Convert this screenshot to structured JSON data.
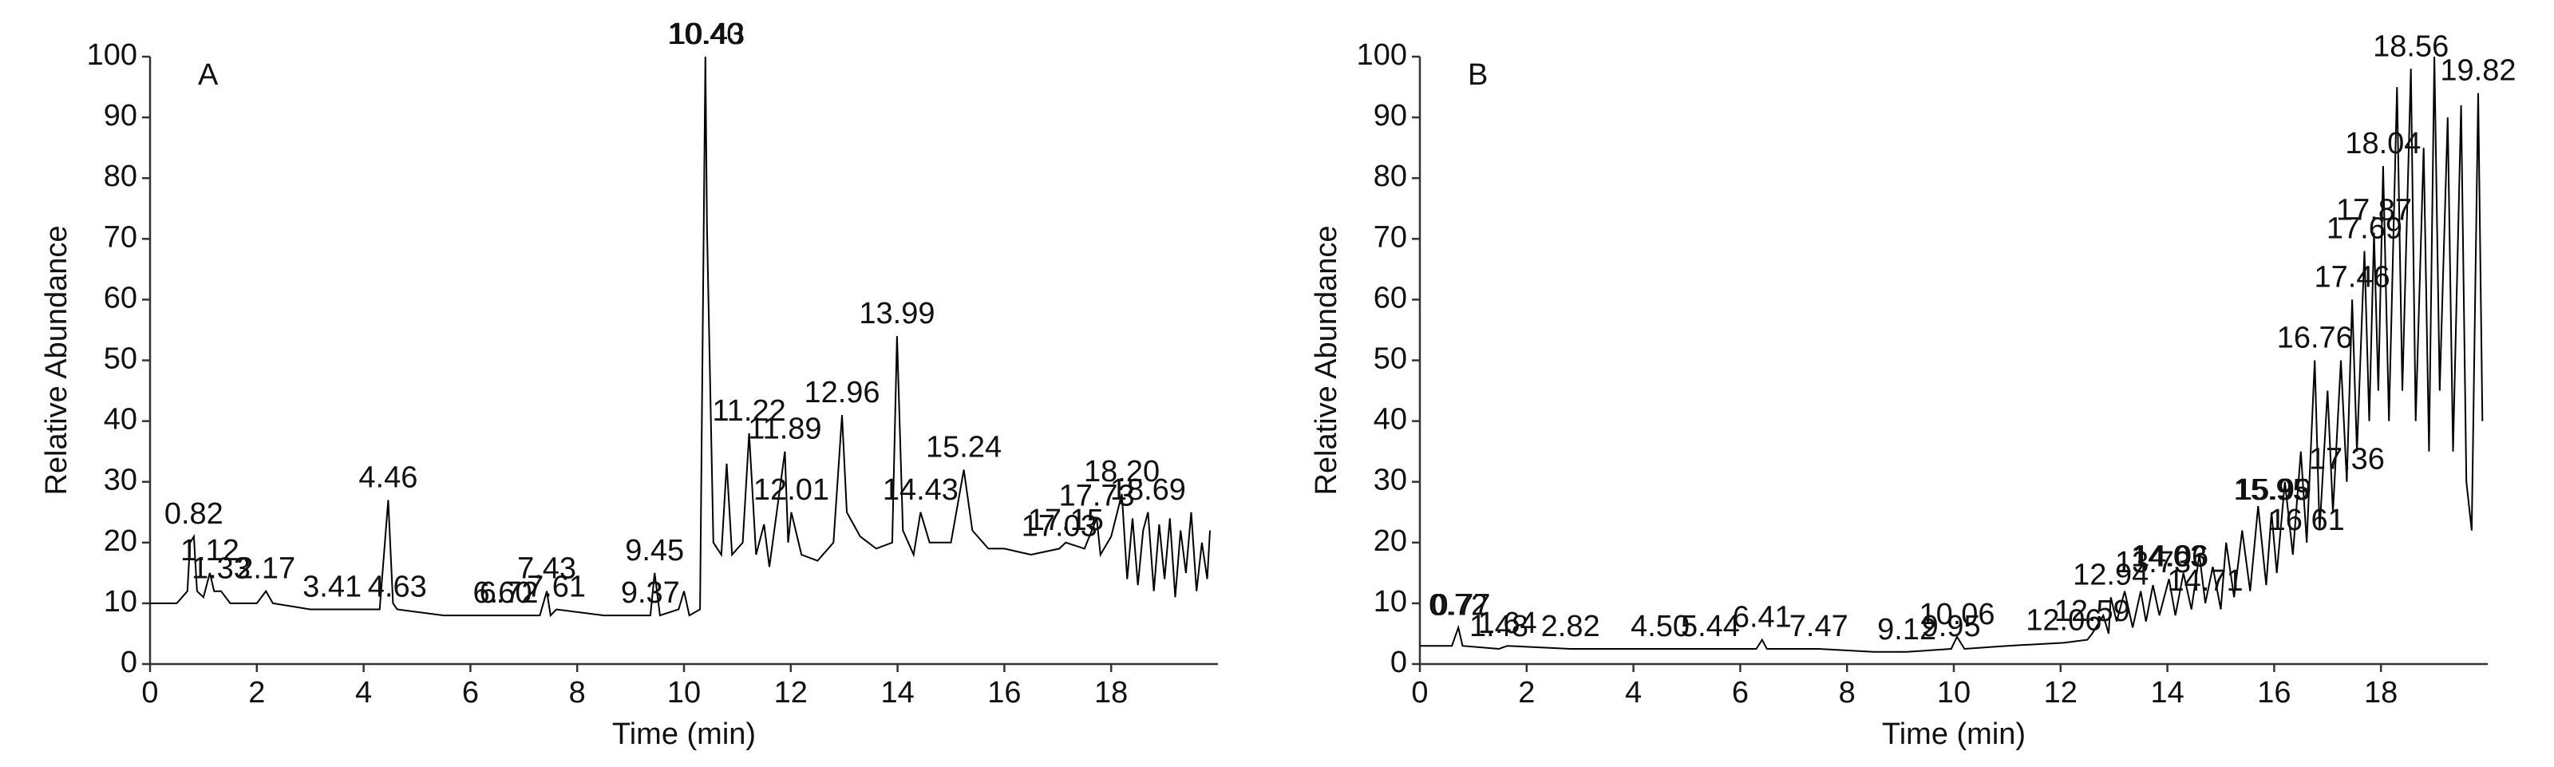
{
  "chart_data": [
    {
      "type": "line",
      "title": "A",
      "x_label": "Time (min)",
      "y_label": "Relative Abundance",
      "color": "#000000",
      "xlim": [
        0,
        20
      ],
      "ylim": [
        0,
        100
      ],
      "xticks": [
        0,
        2,
        4,
        6,
        8,
        10,
        12,
        14,
        16,
        18
      ],
      "yticks": [
        0,
        10,
        20,
        30,
        40,
        50,
        60,
        70,
        80,
        90,
        100
      ],
      "x": [
        0,
        0.5,
        0.7,
        0.75,
        0.82,
        0.88,
        1.0,
        1.12,
        1.2,
        1.33,
        1.5,
        2.0,
        2.17,
        2.3,
        3.0,
        3.41,
        4.3,
        4.46,
        4.55,
        4.63,
        5.5,
        6.6,
        6.72,
        7.3,
        7.43,
        7.5,
        7.61,
        8.5,
        9.37,
        9.45,
        9.55,
        9.9,
        10.0,
        10.1,
        10.3,
        10.4,
        10.43,
        10.55,
        10.7,
        10.8,
        10.9,
        11.1,
        11.22,
        11.35,
        11.5,
        11.6,
        11.89,
        11.95,
        12.01,
        12.2,
        12.5,
        12.8,
        12.96,
        13.05,
        13.3,
        13.6,
        13.9,
        13.99,
        14.1,
        14.3,
        14.43,
        14.6,
        15.0,
        15.24,
        15.4,
        15.7,
        16.0,
        16.5,
        17.03,
        17.15,
        17.5,
        17.73,
        17.8,
        18.0,
        18.2,
        18.3,
        18.4,
        18.5,
        18.6,
        18.69,
        18.8,
        18.9,
        19.0,
        19.1,
        19.2,
        19.3,
        19.4,
        19.5,
        19.6,
        19.7,
        19.8,
        19.85
      ],
      "values": [
        10,
        10,
        12,
        20,
        21,
        12,
        11,
        15,
        12,
        12,
        10,
        10,
        12,
        10,
        9,
        9,
        9,
        27,
        10,
        9,
        8,
        8,
        8,
        8,
        12,
        8,
        9,
        8,
        8,
        15,
        8,
        9,
        12,
        8,
        9,
        100,
        72,
        20,
        18,
        33,
        18,
        20,
        38,
        18,
        23,
        16,
        35,
        20,
        25,
        18,
        17,
        20,
        41,
        25,
        21,
        19,
        20,
        54,
        22,
        18,
        25,
        20,
        20,
        32,
        22,
        19,
        19,
        18,
        19,
        20,
        19,
        24,
        18,
        21,
        28,
        14,
        24,
        13,
        22,
        25,
        12,
        23,
        14,
        24,
        11,
        22,
        15,
        25,
        12,
        20,
        14,
        22
      ],
      "peak_labels": [
        {
          "value": 0.82,
          "label": "0.82"
        },
        {
          "value": 1.12,
          "label": "1.12"
        },
        {
          "value": 1.33,
          "label": "1.33"
        },
        {
          "value": 2.17,
          "label": "2.17"
        },
        {
          "value": 3.41,
          "label": "3.41"
        },
        {
          "value": 4.46,
          "label": "4.46"
        },
        {
          "value": 4.63,
          "label": "4.63"
        },
        {
          "value": 6.6,
          "label": "6.60"
        },
        {
          "value": 6.72,
          "label": "6.72"
        },
        {
          "value": 7.43,
          "label": "7.43"
        },
        {
          "value": 7.61,
          "label": "7.61"
        },
        {
          "value": 9.37,
          "label": "9.37"
        },
        {
          "value": 9.45,
          "label": "9.45"
        },
        {
          "value": 10.4,
          "label": "10.40"
        },
        {
          "value": 10.43,
          "label": "10.43"
        },
        {
          "value": 11.22,
          "label": "11.22"
        },
        {
          "value": 11.89,
          "label": "11.89"
        },
        {
          "value": 12.01,
          "label": "12.01"
        },
        {
          "value": 12.96,
          "label": "12.96"
        },
        {
          "value": 13.99,
          "label": "13.99"
        },
        {
          "value": 14.43,
          "label": "14.43"
        },
        {
          "value": 15.24,
          "label": "15.24"
        },
        {
          "value": 17.03,
          "label": "17.03"
        },
        {
          "value": 17.15,
          "label": "17.15"
        },
        {
          "value": 17.73,
          "label": "17.73"
        },
        {
          "value": 18.2,
          "label": "18.20"
        },
        {
          "value": 18.69,
          "label": "18.69"
        }
      ]
    },
    {
      "type": "line",
      "title": "B",
      "x_label": "Time (min)",
      "y_label": "Relative Abundance",
      "color": "#000000",
      "xlim": [
        0,
        20
      ],
      "ylim": [
        0,
        100
      ],
      "xticks": [
        0,
        2,
        4,
        6,
        8,
        10,
        12,
        14,
        16,
        18
      ],
      "yticks": [
        0,
        10,
        20,
        30,
        40,
        50,
        60,
        70,
        80,
        90,
        100
      ],
      "x": [
        0,
        0.6,
        0.72,
        0.8,
        1.48,
        1.64,
        2.82,
        4.5,
        5.44,
        6.3,
        6.41,
        6.5,
        7.47,
        8.5,
        9.12,
        9.95,
        10.06,
        10.2,
        11,
        12.06,
        12.5,
        12.59,
        12.8,
        12.9,
        12.94,
        13.05,
        13.2,
        13.35,
        13.5,
        13.6,
        13.73,
        13.85,
        14.03,
        14.15,
        14.3,
        14.45,
        14.6,
        14.71,
        14.85,
        15.0,
        15.1,
        15.25,
        15.4,
        15.55,
        15.7,
        15.85,
        15.95,
        16.05,
        16.2,
        16.35,
        16.5,
        16.61,
        16.76,
        16.85,
        17.0,
        17.1,
        17.25,
        17.36,
        17.46,
        17.55,
        17.69,
        17.78,
        17.87,
        17.95,
        18.04,
        18.15,
        18.3,
        18.4,
        18.56,
        18.65,
        18.8,
        18.9,
        19.0,
        19.1,
        19.25,
        19.35,
        19.5,
        19.6,
        19.7,
        19.82,
        19.9
      ],
      "values": [
        3,
        3,
        6,
        3,
        2.5,
        3,
        2.5,
        2.5,
        2.5,
        2.5,
        4,
        2.5,
        2.5,
        2,
        2,
        2.5,
        4.5,
        2.5,
        3,
        3.5,
        4,
        5,
        8,
        5,
        11,
        7,
        12,
        6,
        12,
        7,
        13,
        8,
        14,
        8,
        15,
        9,
        18,
        10,
        16,
        9,
        20,
        11,
        22,
        12,
        26,
        13,
        25,
        15,
        30,
        18,
        35,
        20,
        50,
        22,
        45,
        25,
        50,
        30,
        60,
        35,
        68,
        40,
        71,
        45,
        82,
        40,
        95,
        45,
        98,
        40,
        85,
        35,
        100,
        45,
        90,
        35,
        92,
        30,
        22,
        94,
        40
      ],
      "peak_labels": [
        {
          "value": 0.72,
          "label": "0.72"
        },
        {
          "value": 0.77,
          "label": "0.77"
        },
        {
          "value": 1.48,
          "label": "1.48"
        },
        {
          "value": 1.64,
          "label": "1.64"
        },
        {
          "value": 2.82,
          "label": "2.82"
        },
        {
          "value": 4.5,
          "label": "4.50"
        },
        {
          "value": 5.44,
          "label": "5.44"
        },
        {
          "value": 6.41,
          "label": "6.41"
        },
        {
          "value": 7.47,
          "label": "7.47"
        },
        {
          "value": 9.12,
          "label": "9.12"
        },
        {
          "value": 9.95,
          "label": "9.95"
        },
        {
          "value": 10.06,
          "label": "10.06"
        },
        {
          "value": 12.06,
          "label": "12.06"
        },
        {
          "value": 12.59,
          "label": "12.59"
        },
        {
          "value": 12.94,
          "label": "12.94"
        },
        {
          "value": 13.73,
          "label": "13.73"
        },
        {
          "value": 14.03,
          "label": "14.03"
        },
        {
          "value": 14.06,
          "label": "14.06"
        },
        {
          "value": 14.71,
          "label": "14.71"
        },
        {
          "value": 15.95,
          "label": "15.95"
        },
        {
          "value": 15.99,
          "label": "15.99"
        },
        {
          "value": 16.61,
          "label": "16.61"
        },
        {
          "value": 16.76,
          "label": "16.76"
        },
        {
          "value": 17.36,
          "label": "17.36"
        },
        {
          "value": 17.46,
          "label": "17.46"
        },
        {
          "value": 17.69,
          "label": "17.69"
        },
        {
          "value": 17.87,
          "label": "17.87"
        },
        {
          "value": 18.04,
          "label": "18.04"
        },
        {
          "value": 18.56,
          "label": "18.56"
        },
        {
          "value": 19.82,
          "label": "19.82"
        }
      ]
    }
  ]
}
